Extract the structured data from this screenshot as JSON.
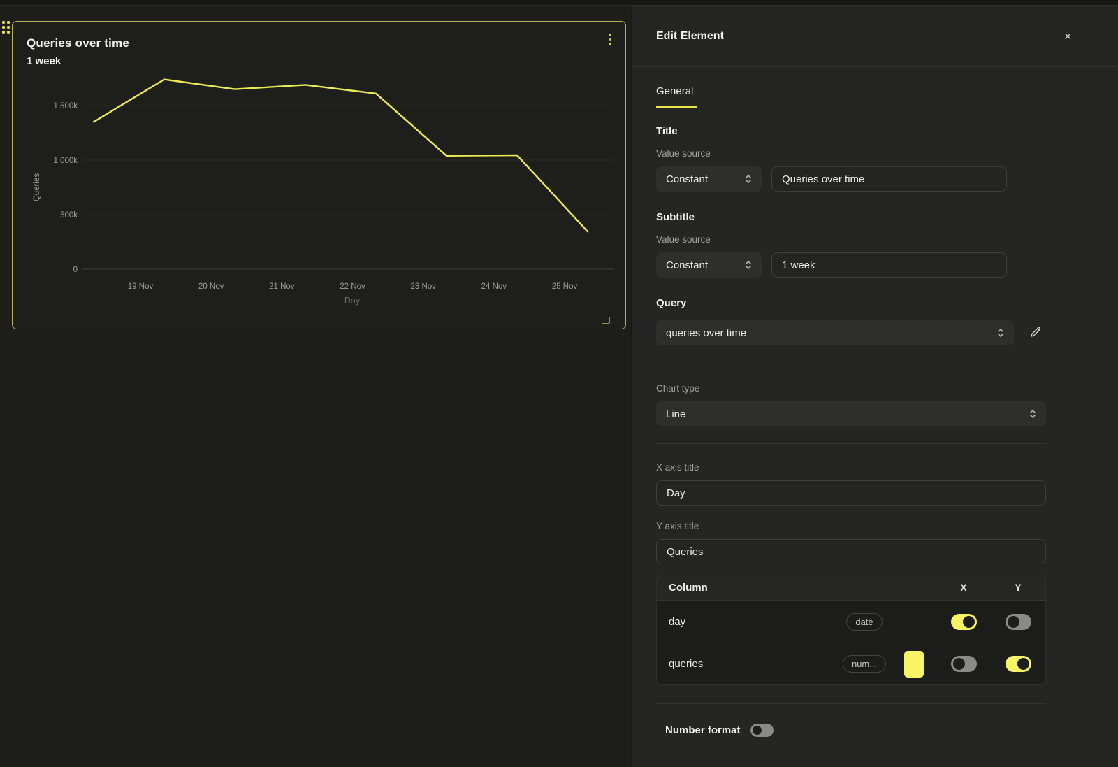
{
  "card": {
    "title": "Queries over time",
    "subtitle": "1 week",
    "menu_icon": "kebab-menu"
  },
  "chart_data": {
    "type": "line",
    "title": "Queries over time",
    "subtitle": "1 week",
    "xlabel": "Day",
    "ylabel": "Queries",
    "grid": true,
    "legend": false,
    "ylim_k": [
      0,
      1800
    ],
    "y_ticks": [
      {
        "label": "1 500k",
        "value_k": 1500
      },
      {
        "label": "1 000k",
        "value_k": 1000
      },
      {
        "label": "500k",
        "value_k": 500
      },
      {
        "label": "0",
        "value_k": 0
      }
    ],
    "x_tick_labels": [
      "19 Nov",
      "20 Nov",
      "21 Nov",
      "22 Nov",
      "23 Nov",
      "24 Nov",
      "25 Nov"
    ],
    "series": [
      {
        "name": "queries",
        "color": "#edeb55",
        "x": [
          "18 Nov",
          "19 Nov",
          "20 Nov",
          "21 Nov",
          "22 Nov",
          "23 Nov",
          "24 Nov",
          "25 Nov"
        ],
        "values_k": [
          1350,
          1740,
          1650,
          1690,
          1610,
          1040,
          1045,
          345
        ]
      }
    ]
  },
  "panel": {
    "title": "Edit Element",
    "close_label": "✕",
    "tabs": [
      {
        "label": "General",
        "active": true
      }
    ],
    "title_section": {
      "heading": "Title",
      "value_source_label": "Value source",
      "source_selected": "Constant",
      "value": "Queries over time"
    },
    "subtitle_section": {
      "heading": "Subtitle",
      "value_source_label": "Value source",
      "source_selected": "Constant",
      "value": "1 week"
    },
    "query_section": {
      "heading": "Query",
      "selected": "queries over time",
      "edit_icon": "pencil"
    },
    "chart_type_section": {
      "label": "Chart type",
      "selected": "Line"
    },
    "x_axis_section": {
      "label": "X axis title",
      "value": "Day"
    },
    "y_axis_section": {
      "label": "Y axis title",
      "value": "Queries"
    },
    "columns_table": {
      "headers": {
        "column": "Column",
        "x": "X",
        "y": "Y"
      },
      "rows": [
        {
          "name": "day",
          "type_badge": "date",
          "swatch": null,
          "x_enabled": true,
          "y_enabled": false
        },
        {
          "name": "queries",
          "type_badge": "num...",
          "swatch": "#f8f566",
          "x_enabled": false,
          "y_enabled": true
        }
      ]
    },
    "number_format": {
      "label": "Number format",
      "enabled": false
    }
  },
  "colors": {
    "accent_yellow": "#f0ec57",
    "card_border": "#b5b157",
    "line": "#edeb55",
    "toggle_on": "#f8f464",
    "toggle_off": "#8a8a86",
    "tab_underline": "#e9e549",
    "grid_line": "#2a2a27",
    "axis_line": "#3c3c38",
    "tick_text": "#9e9e9a",
    "axis_title_text": "#6e6e69"
  }
}
